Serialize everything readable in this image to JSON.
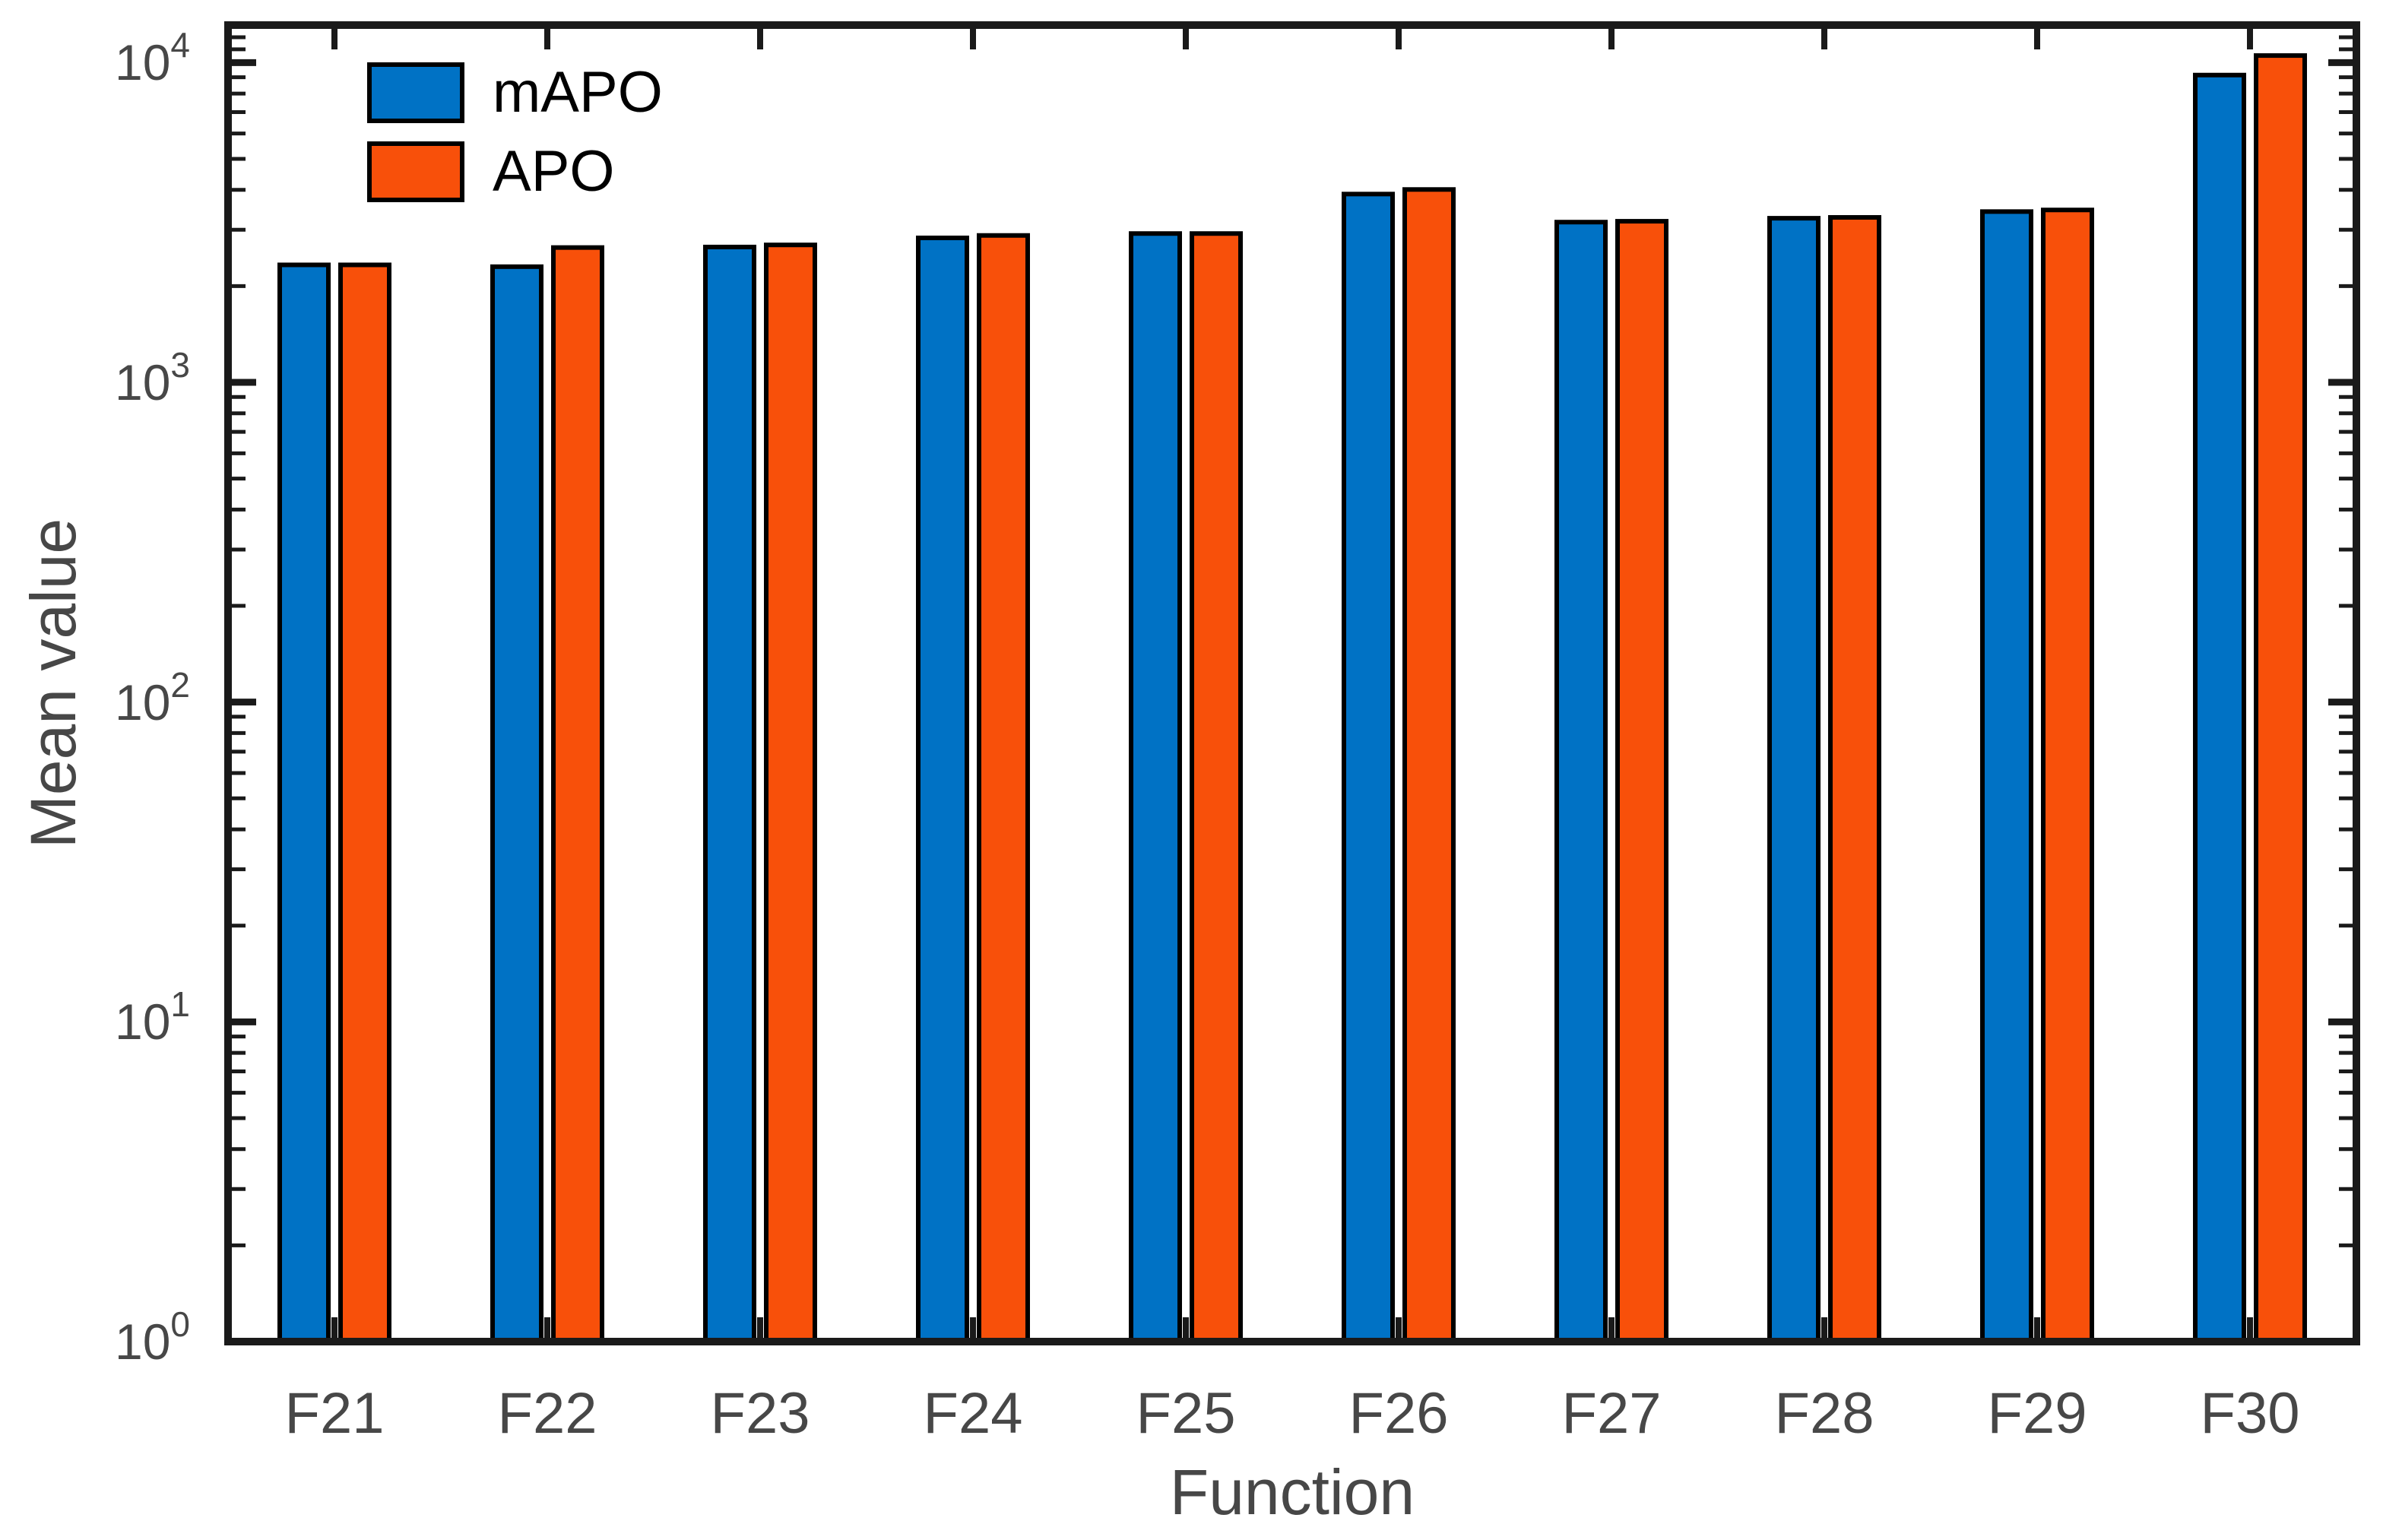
{
  "chart_data": {
    "type": "bar",
    "title": "",
    "xlabel": "Function",
    "ylabel": "Mean value",
    "yscale": "log",
    "ylim": [
      1,
      13100
    ],
    "y_major_ticks": [
      1,
      10,
      100,
      1000,
      10000
    ],
    "y_tick_base": "10",
    "grid": false,
    "legend_position": "top-left-inside",
    "categories": [
      "F21",
      "F22",
      "F23",
      "F24",
      "F25",
      "F26",
      "F27",
      "F28",
      "F29",
      "F30"
    ],
    "series": [
      {
        "name": "mAPO",
        "color": "#0072C5",
        "values": [
          2330,
          2300,
          2650,
          2830,
          2920,
          3880,
          3170,
          3260,
          3420,
          9140
        ]
      },
      {
        "name": "APO",
        "color": "#F8500A",
        "values": [
          2330,
          2640,
          2690,
          2880,
          2920,
          4010,
          3190,
          3280,
          3460,
          10520
        ]
      }
    ]
  },
  "styles": {
    "background": "#FFFFFF",
    "axis_color": "#1A1A1A",
    "tick_label_color": "#474747",
    "legend_text_color": "#000000",
    "bar_edge_color": "#000000"
  }
}
